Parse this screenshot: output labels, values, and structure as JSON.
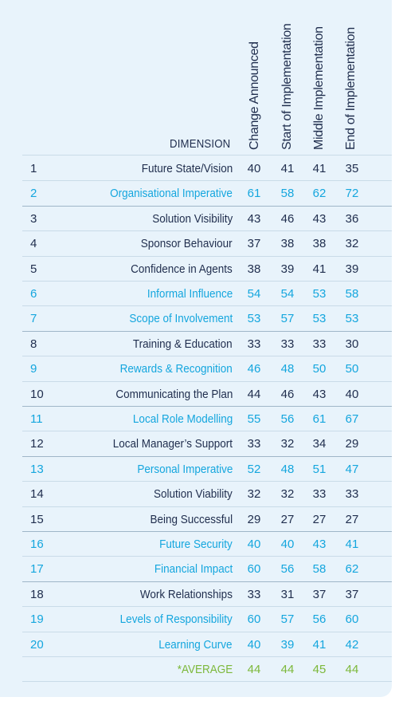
{
  "table": {
    "dimension_header": "DIMENSION",
    "columns": [
      "Change Announced",
      "Start of Implementation",
      "Middle Implementation",
      "End of Implementation"
    ],
    "rows": [
      {
        "num": "1",
        "name": "Future State/Vision",
        "values": [
          40,
          41,
          41,
          35
        ]
      },
      {
        "num": "2",
        "name": "Organisational Imperative",
        "values": [
          61,
          58,
          62,
          72
        ]
      },
      {
        "num": "3",
        "name": "Solution Visibility",
        "values": [
          43,
          46,
          43,
          36
        ]
      },
      {
        "num": "4",
        "name": "Sponsor Behaviour",
        "values": [
          37,
          38,
          38,
          32
        ]
      },
      {
        "num": "5",
        "name": "Confidence in Agents",
        "values": [
          38,
          39,
          41,
          39
        ]
      },
      {
        "num": "6",
        "name": "Informal Influence",
        "values": [
          54,
          54,
          53,
          58
        ]
      },
      {
        "num": "7",
        "name": "Scope of Involvement",
        "values": [
          53,
          57,
          53,
          53
        ]
      },
      {
        "num": "8",
        "name": "Training & Education",
        "values": [
          33,
          33,
          33,
          30
        ]
      },
      {
        "num": "9",
        "name": "Rewards & Recognition",
        "values": [
          46,
          48,
          50,
          50
        ]
      },
      {
        "num": "10",
        "name": "Communicating the Plan",
        "values": [
          44,
          46,
          43,
          40
        ]
      },
      {
        "num": "11",
        "name": "Local Role Modelling",
        "values": [
          55,
          56,
          61,
          67
        ]
      },
      {
        "num": "12",
        "name": "Local Manager’s Support",
        "values": [
          33,
          32,
          34,
          29
        ]
      },
      {
        "num": "13",
        "name": "Personal Imperative",
        "values": [
          52,
          48,
          51,
          47
        ]
      },
      {
        "num": "14",
        "name": "Solution Viability",
        "values": [
          32,
          32,
          33,
          33
        ]
      },
      {
        "num": "15",
        "name": "Being Successful",
        "values": [
          29,
          27,
          27,
          27
        ]
      },
      {
        "num": "16",
        "name": "Future Security",
        "values": [
          40,
          40,
          43,
          41
        ]
      },
      {
        "num": "17",
        "name": "Financial Impact",
        "values": [
          60,
          56,
          58,
          62
        ]
      },
      {
        "num": "18",
        "name": "Work Relationships",
        "values": [
          33,
          31,
          37,
          37
        ]
      },
      {
        "num": "19",
        "name": "Levels of Responsibility",
        "values": [
          60,
          57,
          56,
          60
        ]
      },
      {
        "num": "20",
        "name": "Learning Curve",
        "values": [
          40,
          39,
          41,
          42
        ]
      }
    ],
    "average": {
      "name": "*AVERAGE",
      "values": [
        44,
        44,
        45,
        44
      ]
    }
  },
  "chart_data": {
    "type": "table",
    "columns": [
      "Change Announced",
      "Start of Implementation",
      "Middle Implementation",
      "End of Implementation"
    ],
    "categories": [
      "Future State/Vision",
      "Organisational Imperative",
      "Solution Visibility",
      "Sponsor Behaviour",
      "Confidence in Agents",
      "Informal Influence",
      "Scope of Involvement",
      "Training & Education",
      "Rewards & Recognition",
      "Communicating the Plan",
      "Local Role Modelling",
      "Local Manager’s Support",
      "Personal Imperative",
      "Solution Viability",
      "Being Successful",
      "Future Security",
      "Financial Impact",
      "Work Relationships",
      "Levels of Responsibility",
      "Learning Curve"
    ],
    "series": [
      {
        "name": "Change Announced",
        "values": [
          40,
          61,
          43,
          37,
          38,
          54,
          53,
          33,
          46,
          44,
          55,
          33,
          52,
          32,
          29,
          40,
          60,
          33,
          60,
          40
        ]
      },
      {
        "name": "Start of Implementation",
        "values": [
          41,
          58,
          46,
          38,
          39,
          54,
          57,
          33,
          48,
          46,
          56,
          32,
          48,
          32,
          27,
          40,
          56,
          31,
          57,
          39
        ]
      },
      {
        "name": "Middle Implementation",
        "values": [
          41,
          62,
          43,
          38,
          41,
          53,
          53,
          33,
          50,
          43,
          61,
          34,
          51,
          33,
          27,
          43,
          58,
          37,
          56,
          41
        ]
      },
      {
        "name": "End of Implementation",
        "values": [
          35,
          72,
          36,
          32,
          39,
          58,
          53,
          30,
          50,
          40,
          67,
          29,
          47,
          33,
          27,
          41,
          62,
          37,
          60,
          42
        ]
      }
    ],
    "average": [
      44,
      44,
      45,
      44
    ],
    "highlight": {
      "cyan_rows": [
        2,
        6,
        7,
        9,
        11,
        13,
        16,
        17,
        19,
        20
      ]
    },
    "colors": {
      "background": "#e8f3fb",
      "dark_text": "#1f2d4d",
      "highlight_text": "#14a6de",
      "average_text": "#7cb83a",
      "rule": "#c9dbe8"
    }
  }
}
